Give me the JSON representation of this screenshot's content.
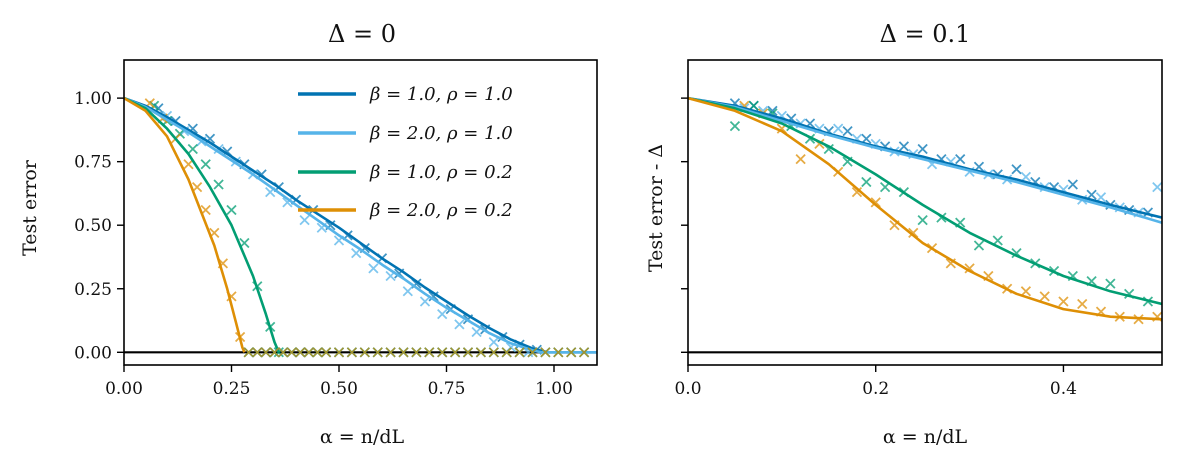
{
  "chart_data": [
    {
      "type": "line",
      "title": "Δ = 0",
      "xlabel": "α = n/dL",
      "ylabel": "Test error",
      "xlim": [
        0.0,
        1.1
      ],
      "ylim": [
        -0.05,
        1.15
      ],
      "xticks": [
        0.0,
        0.25,
        0.5,
        0.75,
        1.0
      ],
      "xtick_labels": [
        "0.00",
        "0.25",
        "0.50",
        "0.75",
        "1.00"
      ],
      "yticks": [
        0.0,
        0.25,
        0.5,
        0.75,
        1.0
      ],
      "ytick_labels": [
        "0.00",
        "0.25",
        "0.50",
        "0.75",
        "1.00"
      ],
      "hline": 0,
      "legend_position": "upper-right",
      "series": [
        {
          "name": "β = 1.0, ρ = 1.0",
          "color": "#0173b2",
          "line": {
            "x": [
              0,
              0.05,
              0.1,
              0.15,
              0.2,
              0.25,
              0.3,
              0.35,
              0.4,
              0.45,
              0.5,
              0.55,
              0.6,
              0.65,
              0.7,
              0.75,
              0.8,
              0.85,
              0.9,
              0.95,
              0.985,
              1.0,
              1.1
            ],
            "y": [
              1.0,
              0.97,
              0.925,
              0.875,
              0.825,
              0.77,
              0.715,
              0.66,
              0.6,
              0.545,
              0.49,
              0.43,
              0.37,
              0.315,
              0.255,
              0.2,
              0.145,
              0.095,
              0.05,
              0.015,
              0.0,
              0.0,
              0.0
            ]
          },
          "markers": {
            "x": [
              0.08,
              0.12,
              0.16,
              0.2,
              0.24,
              0.28,
              0.32,
              0.36,
              0.4,
              0.44,
              0.48,
              0.52,
              0.56,
              0.6,
              0.64,
              0.68,
              0.72,
              0.76,
              0.8,
              0.84,
              0.88,
              0.92,
              0.96
            ],
            "y": [
              0.96,
              0.91,
              0.88,
              0.84,
              0.79,
              0.74,
              0.7,
              0.65,
              0.6,
              0.56,
              0.5,
              0.46,
              0.41,
              0.37,
              0.31,
              0.27,
              0.22,
              0.17,
              0.13,
              0.09,
              0.06,
              0.03,
              0.01
            ]
          }
        },
        {
          "name": "β = 2.0, ρ = 1.0",
          "color": "#56b4e9",
          "line": {
            "x": [
              0,
              0.05,
              0.1,
              0.15,
              0.2,
              0.25,
              0.3,
              0.35,
              0.4,
              0.45,
              0.5,
              0.55,
              0.6,
              0.65,
              0.7,
              0.75,
              0.8,
              0.85,
              0.9,
              0.95,
              0.97,
              1.0,
              1.1
            ],
            "y": [
              1.0,
              0.965,
              0.915,
              0.865,
              0.81,
              0.755,
              0.7,
              0.64,
              0.58,
              0.52,
              0.46,
              0.405,
              0.345,
              0.29,
              0.23,
              0.175,
              0.125,
              0.075,
              0.035,
              0.008,
              0.0,
              0.0,
              0.0
            ]
          },
          "markers": {
            "x": [
              0.1,
              0.14,
              0.18,
              0.22,
              0.26,
              0.3,
              0.34,
              0.38,
              0.42,
              0.46,
              0.5,
              0.54,
              0.58,
              0.62,
              0.66,
              0.7,
              0.74,
              0.78,
              0.82,
              0.86,
              0.9,
              0.94
            ],
            "y": [
              0.93,
              0.87,
              0.83,
              0.8,
              0.75,
              0.7,
              0.63,
              0.59,
              0.52,
              0.49,
              0.44,
              0.39,
              0.33,
              0.3,
              0.24,
              0.2,
              0.15,
              0.11,
              0.08,
              0.04,
              0.02,
              0.0
            ]
          }
        },
        {
          "name": "β = 1.0, ρ = 0.2",
          "color": "#029e73",
          "line": {
            "x": [
              0,
              0.05,
              0.1,
              0.15,
              0.2,
              0.25,
              0.3,
              0.33,
              0.35,
              0.36
            ],
            "y": [
              1.0,
              0.96,
              0.88,
              0.78,
              0.65,
              0.5,
              0.3,
              0.15,
              0.04,
              0.0
            ]
          },
          "markers": {
            "x": [
              0.07,
              0.1,
              0.13,
              0.16,
              0.19,
              0.22,
              0.25,
              0.28,
              0.31,
              0.34,
              0.36
            ],
            "y": [
              0.97,
              0.91,
              0.86,
              0.8,
              0.74,
              0.66,
              0.56,
              0.43,
              0.26,
              0.1,
              0.0
            ]
          }
        },
        {
          "name": "β = 2.0, ρ = 0.2",
          "color": "#de8f05",
          "line": {
            "x": [
              0,
              0.05,
              0.1,
              0.15,
              0.18,
              0.21,
              0.24,
              0.26,
              0.275,
              0.28
            ],
            "y": [
              1.0,
              0.95,
              0.85,
              0.68,
              0.55,
              0.42,
              0.25,
              0.12,
              0.02,
              0.0
            ]
          },
          "markers": {
            "x": [
              0.06,
              0.09,
              0.12,
              0.15,
              0.17,
              0.19,
              0.21,
              0.23,
              0.25,
              0.27
            ],
            "y": [
              0.98,
              0.92,
              0.84,
              0.74,
              0.65,
              0.56,
              0.47,
              0.35,
              0.22,
              0.06
            ]
          }
        }
      ],
      "zero_markers": {
        "x": [
          0.29,
          0.31,
          0.33,
          0.35,
          0.37,
          0.39,
          0.41,
          0.43,
          0.45,
          0.47,
          0.5,
          0.53,
          0.56,
          0.59,
          0.62,
          0.65,
          0.68,
          0.71,
          0.74,
          0.77,
          0.8,
          0.83,
          0.86,
          0.89,
          0.92,
          0.95,
          0.98,
          1.01,
          1.04,
          1.07
        ],
        "y": 0
      }
    },
    {
      "type": "line",
      "title": "Δ = 0.1",
      "xlabel": "α = n/dL",
      "ylabel": "Test error - Δ",
      "xlim": [
        0.0,
        0.505
      ],
      "ylim": [
        -0.05,
        1.15
      ],
      "xticks": [
        0.0,
        0.2,
        0.4
      ],
      "xtick_labels": [
        "0.0",
        "0.2",
        "0.4"
      ],
      "yticks": [
        0.0,
        0.25,
        0.5,
        0.75,
        1.0
      ],
      "hline": 0,
      "series": [
        {
          "name": "β = 1.0, ρ = 1.0",
          "color": "#0173b2",
          "line": {
            "x": [
              0,
              0.05,
              0.1,
              0.15,
              0.2,
              0.25,
              0.3,
              0.35,
              0.4,
              0.45,
              0.505
            ],
            "y": [
              1.0,
              0.97,
              0.92,
              0.86,
              0.81,
              0.77,
              0.72,
              0.68,
              0.63,
              0.58,
              0.53
            ]
          },
          "markers": {
            "x": [
              0.05,
              0.07,
              0.09,
              0.11,
              0.13,
              0.15,
              0.17,
              0.19,
              0.21,
              0.23,
              0.25,
              0.27,
              0.29,
              0.31,
              0.33,
              0.35,
              0.37,
              0.39,
              0.41,
              0.43,
              0.45,
              0.47,
              0.49
            ],
            "y": [
              0.98,
              0.97,
              0.95,
              0.92,
              0.9,
              0.87,
              0.87,
              0.84,
              0.81,
              0.81,
              0.8,
              0.76,
              0.76,
              0.73,
              0.7,
              0.72,
              0.67,
              0.65,
              0.66,
              0.62,
              0.58,
              0.56,
              0.55
            ]
          }
        },
        {
          "name": "β = 2.0, ρ = 1.0",
          "color": "#56b4e9",
          "line": {
            "x": [
              0,
              0.05,
              0.1,
              0.15,
              0.2,
              0.25,
              0.3,
              0.35,
              0.4,
              0.45,
              0.505
            ],
            "y": [
              1.0,
              0.965,
              0.91,
              0.855,
              0.805,
              0.76,
              0.715,
              0.67,
              0.62,
              0.57,
              0.51
            ]
          },
          "markers": {
            "x": [
              0.06,
              0.08,
              0.1,
              0.12,
              0.14,
              0.16,
              0.18,
              0.2,
              0.22,
              0.24,
              0.26,
              0.28,
              0.3,
              0.32,
              0.34,
              0.36,
              0.38,
              0.4,
              0.42,
              0.44,
              0.46,
              0.48,
              0.5
            ],
            "y": [
              0.96,
              0.95,
              0.93,
              0.9,
              0.88,
              0.88,
              0.84,
              0.82,
              0.79,
              0.78,
              0.74,
              0.75,
              0.71,
              0.7,
              0.68,
              0.69,
              0.65,
              0.64,
              0.6,
              0.61,
              0.57,
              0.55,
              0.65
            ]
          }
        },
        {
          "name": "β = 1.0, ρ = 0.2",
          "color": "#029e73",
          "line": {
            "x": [
              0,
              0.05,
              0.1,
              0.15,
              0.2,
              0.25,
              0.3,
              0.35,
              0.4,
              0.45,
              0.505
            ],
            "y": [
              1.0,
              0.96,
              0.9,
              0.81,
              0.7,
              0.58,
              0.47,
              0.38,
              0.3,
              0.24,
              0.19
            ]
          },
          "markers": {
            "x": [
              0.05,
              0.07,
              0.09,
              0.11,
              0.13,
              0.15,
              0.17,
              0.19,
              0.21,
              0.23,
              0.25,
              0.27,
              0.29,
              0.31,
              0.33,
              0.35,
              0.37,
              0.39,
              0.41,
              0.43,
              0.45,
              0.47,
              0.49
            ],
            "y": [
              0.89,
              0.97,
              0.94,
              0.89,
              0.84,
              0.8,
              0.75,
              0.67,
              0.65,
              0.63,
              0.52,
              0.53,
              0.51,
              0.42,
              0.44,
              0.39,
              0.35,
              0.32,
              0.3,
              0.28,
              0.27,
              0.23,
              0.2
            ]
          }
        },
        {
          "name": "β = 2.0, ρ = 0.2",
          "color": "#de8f05",
          "line": {
            "x": [
              0,
              0.05,
              0.1,
              0.15,
              0.2,
              0.25,
              0.3,
              0.35,
              0.4,
              0.45,
              0.505
            ],
            "y": [
              1.0,
              0.95,
              0.87,
              0.74,
              0.58,
              0.43,
              0.32,
              0.23,
              0.17,
              0.14,
              0.13
            ]
          },
          "markers": {
            "x": [
              0.06,
              0.08,
              0.1,
              0.12,
              0.14,
              0.16,
              0.18,
              0.2,
              0.22,
              0.24,
              0.26,
              0.28,
              0.3,
              0.32,
              0.34,
              0.36,
              0.38,
              0.4,
              0.42,
              0.44,
              0.46,
              0.48,
              0.5
            ],
            "y": [
              0.97,
              0.94,
              0.88,
              0.76,
              0.82,
              0.71,
              0.63,
              0.59,
              0.5,
              0.47,
              0.41,
              0.35,
              0.33,
              0.3,
              0.25,
              0.24,
              0.22,
              0.2,
              0.19,
              0.16,
              0.14,
              0.13,
              0.14
            ]
          }
        }
      ]
    }
  ]
}
